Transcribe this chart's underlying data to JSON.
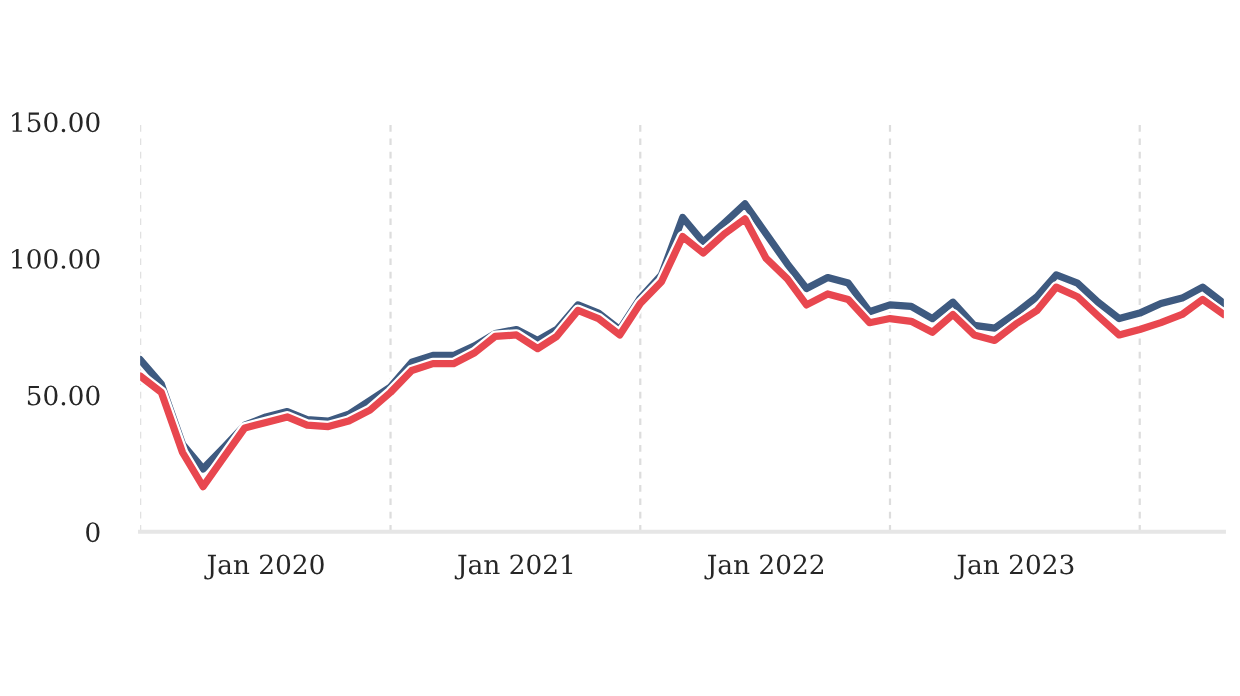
{
  "chart_data": {
    "type": "line",
    "x": [
      "2019-07",
      "2019-08",
      "2019-09",
      "2019-10",
      "2019-11",
      "2019-12",
      "2020-01",
      "2020-02",
      "2020-03",
      "2020-04",
      "2020-05",
      "2020-06",
      "2020-07",
      "2020-08",
      "2020-09",
      "2020-10",
      "2020-11",
      "2020-12",
      "2021-01",
      "2021-02",
      "2021-03",
      "2021-04",
      "2021-05",
      "2021-06",
      "2021-07",
      "2021-08",
      "2021-09",
      "2021-10",
      "2021-11",
      "2021-12",
      "2022-01",
      "2022-02",
      "2022-03",
      "2022-04",
      "2022-05",
      "2022-06",
      "2022-07",
      "2022-08",
      "2022-09",
      "2022-10",
      "2022-11",
      "2022-12",
      "2023-01",
      "2023-02",
      "2023-03",
      "2023-04",
      "2023-05",
      "2023-06",
      "2023-07",
      "2023-08",
      "2023-09",
      "2023-10",
      "2023-11"
    ],
    "series": [
      {
        "color": "#3e5a80",
        "values": [
          63,
          54,
          32,
          23,
          31,
          39,
          42,
          44,
          41,
          40.5,
          43,
          48,
          53,
          62,
          64.5,
          64.5,
          68,
          72.5,
          74,
          70,
          74,
          83,
          80,
          74,
          85.5,
          94,
          115,
          106,
          113,
          120,
          109,
          98,
          89,
          93,
          91,
          80.5,
          83,
          82.5,
          78,
          84,
          75.5,
          74.5,
          80,
          86,
          94,
          91,
          84,
          78,
          80,
          83.5,
          85.5,
          89.5,
          83.5
        ]
      },
      {
        "color": "#e8474f",
        "values": [
          57,
          51,
          29,
          16.5,
          27.5,
          38,
          40,
          42,
          39,
          38.5,
          40.5,
          44.5,
          51,
          59,
          61.5,
          61.5,
          65.5,
          71.5,
          72,
          67,
          71.5,
          81,
          78,
          72,
          83.5,
          91.5,
          108,
          102,
          109,
          114.5,
          100,
          92.5,
          83,
          87,
          85,
          76.5,
          78,
          77,
          73,
          79.5,
          72,
          70,
          76,
          81,
          89.5,
          86,
          79,
          72,
          74,
          76.5,
          79.5,
          85,
          79.5
        ]
      }
    ],
    "xlim": [
      "2019-07",
      "2023-11"
    ],
    "xticks": [
      {
        "value": "2019-07",
        "label": null
      },
      {
        "value": "2020-01",
        "label": "Jan 2020"
      },
      {
        "value": "2020-07",
        "label": null
      },
      {
        "value": "2021-01",
        "label": "Jan 2021"
      },
      {
        "value": "2021-07",
        "label": null
      },
      {
        "value": "2022-01",
        "label": "Jan 2022"
      },
      {
        "value": "2022-07",
        "label": null
      },
      {
        "value": "2023-01",
        "label": "Jan 2023"
      },
      {
        "value": "2023-07",
        "label": null
      }
    ],
    "ylim": [
      0,
      150
    ],
    "yticks": [
      0,
      {
        "value": 50,
        "label": "50.00"
      },
      {
        "value": 100,
        "label": "100.00"
      },
      {
        "value": 150,
        "label": "150.00"
      }
    ],
    "grid": "x",
    "legend": false
  }
}
